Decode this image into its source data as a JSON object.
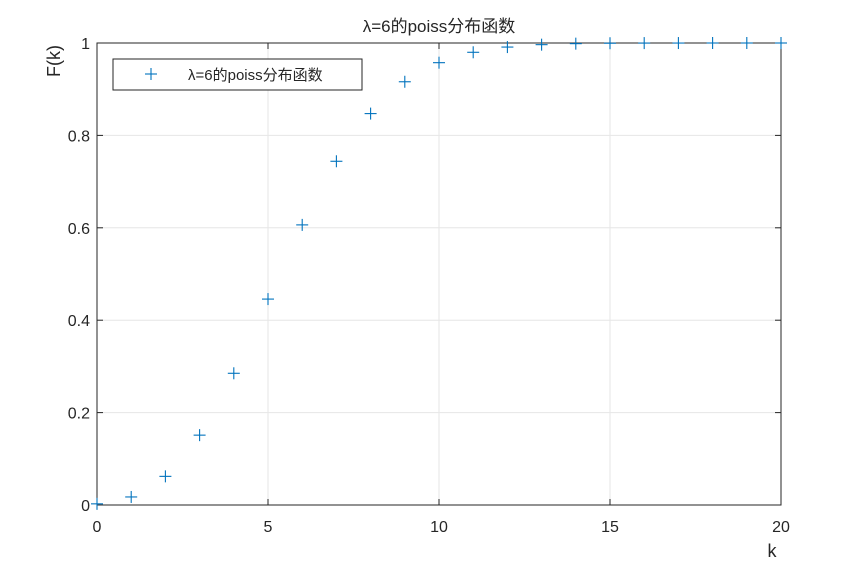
{
  "chart_data": {
    "type": "scatter",
    "title": "λ=6的poiss分布函数",
    "xlabel": "k",
    "ylabel": "F(k)",
    "xlim": [
      0,
      20
    ],
    "ylim": [
      0,
      1
    ],
    "xticks": [
      0,
      5,
      10,
      15,
      20
    ],
    "yticks": [
      0,
      0.2,
      0.4,
      0.6,
      0.8,
      1
    ],
    "xtick_labels": [
      "0",
      "5",
      "10",
      "15",
      "20"
    ],
    "ytick_labels": [
      "0",
      "0.2",
      "0.4",
      "0.6",
      "0.8",
      "1"
    ],
    "grid": true,
    "legend_position": "top-left",
    "marker": "+",
    "marker_color": "#0072bd",
    "series": [
      {
        "name": "λ=6的poiss分布函数",
        "x": [
          0,
          1,
          2,
          3,
          4,
          5,
          6,
          7,
          8,
          9,
          10,
          11,
          12,
          13,
          14,
          15,
          16,
          17,
          18,
          19,
          20
        ],
        "y": [
          0.0025,
          0.0174,
          0.062,
          0.1512,
          0.2851,
          0.4457,
          0.6063,
          0.744,
          0.8472,
          0.9161,
          0.9574,
          0.9799,
          0.9912,
          0.9964,
          0.9986,
          0.9995,
          0.9998,
          0.9999,
          1.0,
          1.0,
          1.0
        ]
      }
    ]
  }
}
